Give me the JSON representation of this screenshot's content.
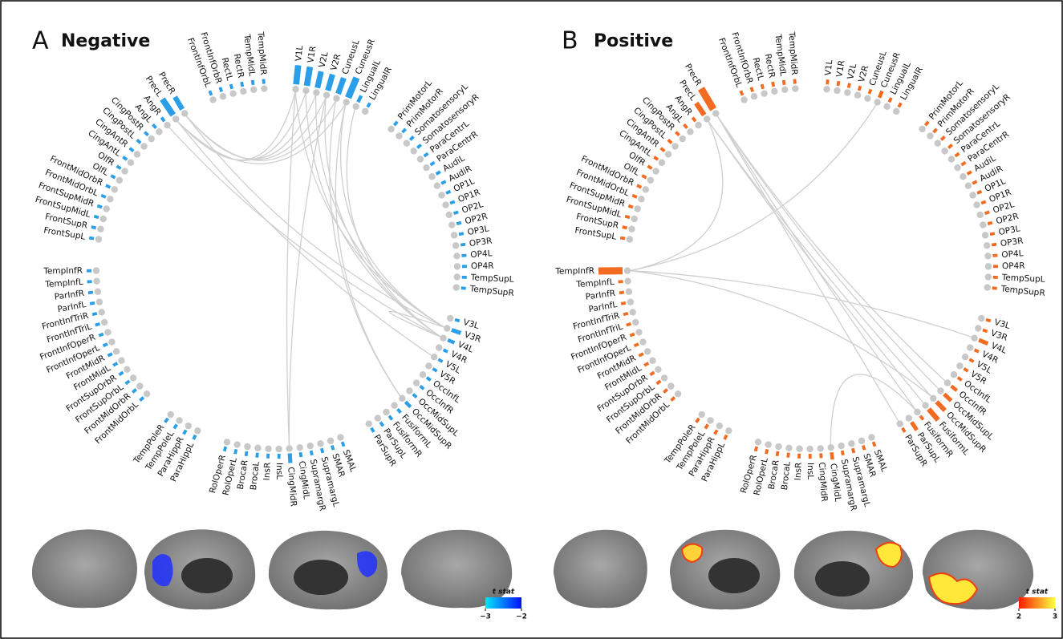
{
  "nodes": [
    "V1L",
    "V1R",
    "V2L",
    "V2R",
    "CuneusL",
    "CuneusR",
    "LingualL",
    "LingualR",
    "PrimMotorL",
    "PrimMotorR",
    "SomatosensoryL",
    "SomatosensoryR",
    "ParaCentrL",
    "ParaCentrR",
    "AudiL",
    "AudiR",
    "OP1L",
    "OP1R",
    "OP2L",
    "OP2R",
    "OP3L",
    "OP3R",
    "OP4L",
    "OP4R",
    "TempSupL",
    "TempSupR",
    "V3L",
    "V3R",
    "V4L",
    "V4R",
    "V5L",
    "V5R",
    "OccInfL",
    "OccInfR",
    "OccMidSupL",
    "OccMidSupR",
    "FusiformL",
    "FusiformR",
    "ParSupL",
    "ParSupR",
    "SMAL",
    "SMAR",
    "SupramargL",
    "SupramargR",
    "CingMidL",
    "CingMidR",
    "InsL",
    "InsR",
    "BrocaL",
    "BrocaR",
    "RolOperL",
    "RolOperR",
    "ParaHippL",
    "ParaHippR",
    "TempPoleL",
    "TempPoleR",
    "FrontMidOrbL",
    "FrontMidOrbR",
    "FrontSupOrbL",
    "FrontSupOrbR",
    "FrontMidL",
    "FrontMidR",
    "FrontInfOperL",
    "FrontInfOperR",
    "FrontInfTriL",
    "FrontInfTriR",
    "ParInfL",
    "ParInfR",
    "TempInfL",
    "TempInfR",
    "FrontSupL",
    "FrontSupR",
    "FrontSupMidL",
    "FrontSupMidR",
    "FrontMidOrbL",
    "FrontMidOrbR",
    "OlfL",
    "OlfR",
    "CingAntL",
    "CingAntR",
    "CingPostL",
    "CingPostR",
    "AngL",
    "AngR",
    "PrecL",
    "PrecR",
    "FrontInfOrbL",
    "FrontInfOrbR",
    "RectL",
    "RectR",
    "TempMidL",
    "TempMidR"
  ],
  "panels": [
    {
      "letter": "A",
      "title": "Negative",
      "color": "#2a9fe8",
      "node_strength": [
        4,
        4,
        3.5,
        3.5,
        3.5,
        4.5,
        1.5,
        1,
        1,
        1,
        1,
        1,
        1,
        1,
        1,
        1,
        1,
        1,
        1,
        1,
        1,
        1,
        1,
        1,
        1,
        1,
        1,
        2,
        1.5,
        1,
        1,
        1,
        1,
        1,
        1,
        1.5,
        1,
        1,
        1,
        1,
        1,
        1,
        1,
        1,
        1,
        2,
        1,
        1,
        1,
        1,
        1,
        1,
        1,
        1,
        1,
        1,
        1,
        1,
        1,
        1,
        1,
        1,
        1,
        1,
        1,
        1,
        1,
        1,
        1,
        1,
        1,
        1,
        1,
        1,
        1,
        1,
        1,
        1,
        1,
        1,
        1,
        1,
        1,
        1,
        4,
        3,
        1,
        1,
        1,
        1,
        1,
        1
      ],
      "edges": [
        [
          84,
          0
        ],
        [
          84,
          1
        ],
        [
          85,
          2
        ],
        [
          85,
          4
        ],
        [
          84,
          5
        ],
        [
          85,
          3
        ],
        [
          0,
          27
        ],
        [
          1,
          28
        ],
        [
          2,
          27
        ],
        [
          3,
          28
        ],
        [
          4,
          35
        ],
        [
          5,
          27
        ],
        [
          5,
          35
        ],
        [
          6,
          28
        ],
        [
          0,
          45
        ],
        [
          3,
          45
        ],
        [
          85,
          27
        ],
        [
          83,
          28
        ],
        [
          27,
          28
        ],
        [
          84,
          30
        ]
      ],
      "colorbar": {
        "title": "t stat",
        "colors": [
          "#00e5ff",
          "#0010ff"
        ],
        "ticks": [
          {
            "value": -3,
            "label": "−3"
          },
          {
            "value": -2,
            "label": "−2"
          }
        ]
      }
    },
    {
      "letter": "B",
      "title": "Positive",
      "color": "#f26b21",
      "node_strength": [
        1,
        1,
        1,
        1,
        1,
        1.5,
        1,
        1,
        1,
        1,
        1,
        1,
        1,
        1,
        1,
        1,
        1,
        1,
        1,
        1,
        1,
        1,
        1,
        1,
        1,
        1,
        1,
        1,
        2,
        1,
        1,
        1,
        1,
        1.5,
        2,
        2.5,
        3,
        1,
        2,
        1,
        1,
        1,
        1,
        1,
        1.5,
        1,
        1,
        1,
        1,
        1,
        1,
        1,
        1,
        1,
        1,
        1,
        1,
        1,
        1,
        1,
        1,
        1,
        1,
        1,
        1,
        1,
        1,
        1,
        1,
        5,
        1,
        1,
        1,
        1,
        1,
        1,
        1,
        1,
        1,
        1,
        1,
        1,
        1,
        1,
        3,
        5,
        1,
        1,
        1,
        1,
        1,
        1
      ],
      "edges": [
        [
          84,
          69
        ],
        [
          5,
          69
        ],
        [
          69,
          28
        ],
        [
          69,
          35
        ],
        [
          85,
          34
        ],
        [
          85,
          37
        ],
        [
          84,
          35
        ],
        [
          85,
          33
        ],
        [
          44,
          37
        ],
        [
          85,
          39
        ],
        [
          84,
          36
        ]
      ],
      "colorbar": {
        "title": "t stat",
        "colors": [
          "#ff1a00",
          "#ffff40"
        ],
        "ticks": [
          2,
          3
        ]
      }
    }
  ]
}
